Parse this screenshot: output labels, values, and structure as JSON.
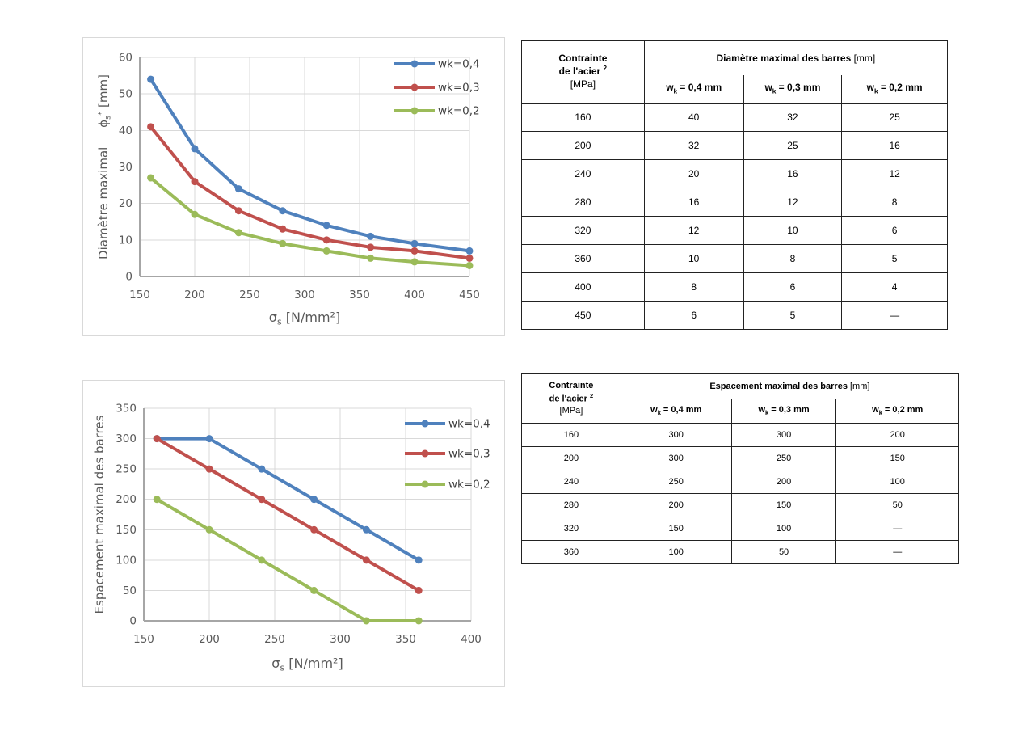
{
  "page_background": "#ffffff",
  "palette": {
    "series_blue": "#4F81BD",
    "series_red": "#C0504D",
    "series_green": "#9BBB59",
    "gridline": "#D9D9D9",
    "axis_line": "#A6A6A6",
    "axis_text": "#595959",
    "legend_text": "#404040",
    "table_border": "#222222",
    "panel_border": "#D9D9D9"
  },
  "chart_data": [
    {
      "type": "line",
      "title": "",
      "xlabel": "σs [N/mm²]",
      "ylabel": "Diamètre maximal ϕs* [mm]",
      "xlabel_segments": [
        {
          "t": "σ"
        },
        {
          "t": "s",
          "pos": "sub"
        },
        {
          "t": " [N/mm²]"
        }
      ],
      "ylabel_segments": [
        {
          "t": "Diamètre maximal     "
        },
        {
          "t": "ϕ"
        },
        {
          "t": "s",
          "pos": "sub"
        },
        {
          "t": "*",
          "pos": "sup"
        },
        {
          "t": " [mm]"
        }
      ],
      "x": [
        160,
        200,
        240,
        280,
        320,
        360,
        400,
        450
      ],
      "series": [
        {
          "name": "wk=0,4",
          "color": "#4F81BD",
          "values": [
            54,
            35,
            24,
            18,
            14,
            11,
            9,
            7
          ]
        },
        {
          "name": "wk=0,3",
          "color": "#C0504D",
          "values": [
            41,
            26,
            18,
            13,
            10,
            8,
            7,
            5
          ]
        },
        {
          "name": "wk=0,2",
          "color": "#9BBB59",
          "values": [
            27,
            17,
            12,
            9,
            7,
            5,
            4,
            3
          ]
        }
      ],
      "xlim": [
        150,
        450
      ],
      "xtick_step": 50,
      "ylim": [
        0,
        60
      ],
      "ytick_step": 10,
      "grid": true,
      "legend_position": "top-right"
    },
    {
      "type": "line",
      "title": "",
      "xlabel": "σs [N/mm²]",
      "ylabel": "Espacement maximal des barres",
      "xlabel_segments": [
        {
          "t": "σ"
        },
        {
          "t": "s",
          "pos": "sub"
        },
        {
          "t": " [N/mm²]"
        }
      ],
      "ylabel_segments": [
        {
          "t": "Espacement maximal des barres"
        }
      ],
      "x": [
        160,
        200,
        240,
        280,
        320,
        360
      ],
      "series": [
        {
          "name": "wk=0,4",
          "color": "#4F81BD",
          "values": [
            300,
            300,
            250,
            200,
            150,
            100
          ]
        },
        {
          "name": "wk=0,3",
          "color": "#C0504D",
          "values": [
            300,
            250,
            200,
            150,
            100,
            50
          ]
        },
        {
          "name": "wk=0,2",
          "color": "#9BBB59",
          "values": [
            200,
            150,
            100,
            50,
            0,
            0
          ]
        }
      ],
      "xlim": [
        150,
        400
      ],
      "xtick_step": 50,
      "ylim": [
        0,
        350
      ],
      "ytick_step": 50,
      "grid": true,
      "legend_position": "top-right"
    }
  ],
  "tables": [
    {
      "stress_header": {
        "line1": "Contrainte",
        "line2": "de l'acier",
        "line2_sup": "2",
        "line3": "[MPa]"
      },
      "span_header": {
        "title": "Diamètre maximal des barres",
        "unit": "[mm]"
      },
      "sub_headers": [
        {
          "pre": "w",
          "sub": "k",
          "post": " = 0,4 mm"
        },
        {
          "pre": "w",
          "sub": "k",
          "post": " = 0,3 mm"
        },
        {
          "pre": "w",
          "sub": "k",
          "post": " = 0,2 mm"
        }
      ],
      "rows": [
        [
          "160",
          "40",
          "32",
          "25"
        ],
        [
          "200",
          "32",
          "25",
          "16"
        ],
        [
          "240",
          "20",
          "16",
          "12"
        ],
        [
          "280",
          "16",
          "12",
          "8"
        ],
        [
          "320",
          "12",
          "10",
          "6"
        ],
        [
          "360",
          "10",
          "8",
          "5"
        ],
        [
          "400",
          "8",
          "6",
          "4"
        ],
        [
          "450",
          "6",
          "5",
          "—"
        ]
      ]
    },
    {
      "stress_header": {
        "line1": "Contrainte",
        "line2": "de l'acier",
        "line2_sup": "2",
        "line3": "[MPa]"
      },
      "span_header": {
        "title": "Espacement maximal des barres",
        "unit": "[mm]"
      },
      "sub_headers": [
        {
          "pre": "w",
          "sub": "k",
          "post": " = 0,4 mm"
        },
        {
          "pre": "w",
          "sub": "k",
          "post": " = 0,3 mm"
        },
        {
          "pre": "w",
          "sub": "k",
          "post": " = 0,2 mm"
        }
      ],
      "rows": [
        [
          "160",
          "300",
          "300",
          "200"
        ],
        [
          "200",
          "300",
          "250",
          "150"
        ],
        [
          "240",
          "250",
          "200",
          "100"
        ],
        [
          "280",
          "200",
          "150",
          "50"
        ],
        [
          "320",
          "150",
          "100",
          "—"
        ],
        [
          "360",
          "100",
          "50",
          "—"
        ]
      ]
    }
  ]
}
